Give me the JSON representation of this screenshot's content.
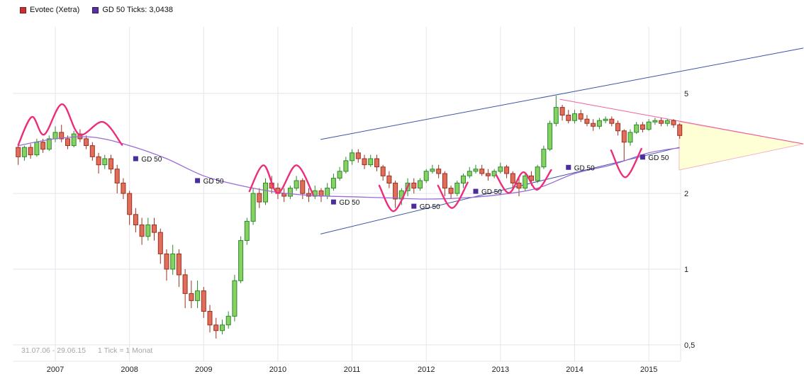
{
  "legend": {
    "items": [
      {
        "label": "Evotec (Xetra)",
        "marker_color": "#cc2f2f"
      },
      {
        "label": "GD 50 Ticks: 3,0438",
        "marker_color": "#5b2ea6"
      }
    ]
  },
  "footer": {
    "range": "31.07.06 - 29.06.15",
    "tick_note": "1 Tick = 1 Monat"
  },
  "colors": {
    "up_fill": "#86d161",
    "up_stroke": "#2c8a2c",
    "down_fill": "#df6e5a",
    "down_stroke": "#9c2f1f",
    "gd50_line": "#9a6bd6",
    "gd50_marker": "#4b2c9e",
    "annotation_pink": "#ee2d7a",
    "trendline_blue": "#3c55a5",
    "triangle_fill": "#ffffd6",
    "triangle_stroke": "#f2b7c6",
    "grid": "#e4e4ec",
    "axis_text": "#222222",
    "note_text": "#a6a6a6"
  },
  "chart_data": {
    "type": "candlestick",
    "title": "Evotec (Xetra)",
    "period": "monthly",
    "start_month": "2006-07",
    "end_month": "2015-06",
    "y_scale": "log",
    "y_ticks": [
      5,
      2,
      1,
      0.5
    ],
    "y_tick_labels": [
      "5",
      "2",
      "1",
      "0,5"
    ],
    "x_tick_labels": [
      "2007",
      "2008",
      "2009",
      "2010",
      "2011",
      "2012",
      "2013",
      "2014",
      "2015"
    ],
    "candles": [
      [
        3.05,
        3.1,
        2.6,
        2.8
      ],
      [
        2.8,
        3.1,
        2.7,
        3.05
      ],
      [
        3.05,
        3.15,
        2.75,
        2.85
      ],
      [
        2.85,
        3.3,
        2.8,
        3.2
      ],
      [
        3.2,
        3.3,
        2.9,
        3.0
      ],
      [
        3.0,
        3.4,
        2.95,
        3.3
      ],
      [
        3.3,
        3.7,
        3.2,
        3.5
      ],
      [
        3.5,
        3.75,
        3.2,
        3.3
      ],
      [
        3.3,
        3.4,
        3.0,
        3.1
      ],
      [
        3.1,
        3.55,
        3.05,
        3.45
      ],
      [
        3.45,
        3.6,
        3.2,
        3.3
      ],
      [
        3.3,
        3.4,
        3.0,
        3.1
      ],
      [
        3.1,
        3.2,
        2.7,
        2.8
      ],
      [
        2.8,
        2.9,
        2.4,
        2.6
      ],
      [
        2.6,
        2.85,
        2.5,
        2.75
      ],
      [
        2.75,
        2.85,
        2.4,
        2.5
      ],
      [
        2.5,
        2.6,
        2.0,
        2.2
      ],
      [
        2.2,
        2.3,
        1.9,
        2.0
      ],
      [
        2.0,
        2.05,
        1.5,
        1.65
      ],
      [
        1.65,
        1.75,
        1.4,
        1.5
      ],
      [
        1.5,
        1.6,
        1.25,
        1.35
      ],
      [
        1.35,
        1.6,
        1.3,
        1.5
      ],
      [
        1.5,
        1.6,
        1.3,
        1.4
      ],
      [
        1.4,
        1.45,
        1.05,
        1.15
      ],
      [
        1.15,
        1.2,
        0.9,
        1.0
      ],
      [
        1.0,
        1.25,
        0.95,
        1.15
      ],
      [
        1.15,
        1.2,
        0.85,
        0.95
      ],
      [
        0.95,
        1.0,
        0.7,
        0.8
      ],
      [
        0.8,
        0.9,
        0.7,
        0.75
      ],
      [
        0.75,
        0.9,
        0.7,
        0.82
      ],
      [
        0.82,
        0.85,
        0.64,
        0.68
      ],
      [
        0.68,
        0.72,
        0.56,
        0.6
      ],
      [
        0.6,
        0.64,
        0.53,
        0.57
      ],
      [
        0.57,
        0.63,
        0.55,
        0.6
      ],
      [
        0.6,
        0.68,
        0.58,
        0.65
      ],
      [
        0.65,
        0.95,
        0.62,
        0.9
      ],
      [
        0.9,
        1.35,
        0.88,
        1.3
      ],
      [
        1.3,
        1.6,
        1.25,
        1.55
      ],
      [
        1.55,
        2.1,
        1.5,
        2.0
      ],
      [
        2.0,
        2.1,
        1.75,
        1.85
      ],
      [
        1.85,
        2.3,
        1.8,
        2.2
      ],
      [
        2.2,
        2.35,
        2.0,
        2.1
      ],
      [
        2.1,
        2.2,
        1.9,
        2.0
      ],
      [
        2.0,
        2.1,
        1.85,
        1.95
      ],
      [
        1.95,
        2.15,
        1.9,
        2.1
      ],
      [
        2.1,
        2.35,
        2.05,
        2.25
      ],
      [
        2.25,
        2.3,
        1.9,
        2.0
      ],
      [
        2.0,
        2.1,
        1.85,
        1.95
      ],
      [
        1.95,
        2.15,
        1.9,
        2.05
      ],
      [
        2.05,
        2.1,
        1.85,
        1.95
      ],
      [
        1.95,
        2.2,
        1.9,
        2.1
      ],
      [
        2.1,
        2.4,
        2.05,
        2.3
      ],
      [
        2.3,
        2.55,
        2.25,
        2.45
      ],
      [
        2.45,
        2.8,
        2.4,
        2.7
      ],
      [
        2.7,
        3.0,
        2.6,
        2.9
      ],
      [
        2.9,
        3.0,
        2.65,
        2.75
      ],
      [
        2.75,
        2.85,
        2.5,
        2.6
      ],
      [
        2.6,
        2.85,
        2.55,
        2.75
      ],
      [
        2.75,
        2.85,
        2.45,
        2.55
      ],
      [
        2.55,
        2.6,
        2.25,
        2.35
      ],
      [
        2.35,
        2.45,
        2.1,
        2.2
      ],
      [
        2.2,
        2.25,
        1.75,
        1.9
      ],
      [
        1.9,
        2.1,
        1.8,
        2.05
      ],
      [
        2.05,
        2.3,
        1.95,
        2.2
      ],
      [
        2.2,
        2.3,
        2.0,
        2.1
      ],
      [
        2.1,
        2.3,
        2.05,
        2.25
      ],
      [
        2.25,
        2.5,
        2.2,
        2.45
      ],
      [
        2.45,
        2.6,
        2.4,
        2.5
      ],
      [
        2.5,
        2.6,
        2.3,
        2.4
      ],
      [
        2.4,
        2.45,
        1.95,
        2.1
      ],
      [
        2.1,
        2.15,
        1.9,
        2.0
      ],
      [
        2.0,
        2.25,
        1.95,
        2.2
      ],
      [
        2.2,
        2.4,
        2.1,
        2.35
      ],
      [
        2.35,
        2.55,
        2.3,
        2.45
      ],
      [
        2.45,
        2.6,
        2.4,
        2.5
      ],
      [
        2.5,
        2.6,
        2.35,
        2.4
      ],
      [
        2.4,
        2.5,
        2.25,
        2.35
      ],
      [
        2.35,
        2.5,
        2.3,
        2.45
      ],
      [
        2.45,
        2.65,
        2.4,
        2.55
      ],
      [
        2.55,
        2.6,
        2.3,
        2.4
      ],
      [
        2.4,
        2.45,
        2.05,
        2.2
      ],
      [
        2.2,
        2.3,
        1.95,
        2.1
      ],
      [
        2.1,
        2.4,
        2.05,
        2.35
      ],
      [
        2.35,
        2.45,
        2.15,
        2.25
      ],
      [
        2.25,
        2.6,
        2.2,
        2.55
      ],
      [
        2.55,
        3.1,
        2.5,
        3.0
      ],
      [
        3.0,
        3.9,
        2.95,
        3.8
      ],
      [
        3.8,
        4.9,
        3.7,
        4.4
      ],
      [
        4.4,
        4.5,
        3.9,
        4.1
      ],
      [
        4.1,
        4.3,
        3.8,
        3.9
      ],
      [
        3.9,
        4.3,
        3.8,
        4.15
      ],
      [
        4.15,
        4.3,
        3.85,
        3.95
      ],
      [
        3.95,
        4.1,
        3.7,
        3.8
      ],
      [
        3.8,
        3.95,
        3.55,
        3.7
      ],
      [
        3.7,
        4.0,
        3.6,
        3.9
      ],
      [
        3.9,
        4.05,
        3.8,
        3.95
      ],
      [
        3.95,
        4.05,
        3.7,
        3.8
      ],
      [
        3.8,
        3.9,
        3.4,
        3.55
      ],
      [
        3.55,
        3.6,
        2.7,
        3.2
      ],
      [
        3.2,
        3.6,
        3.1,
        3.5
      ],
      [
        3.5,
        3.85,
        3.45,
        3.75
      ],
      [
        3.75,
        3.85,
        3.5,
        3.6
      ],
      [
        3.6,
        3.95,
        3.55,
        3.85
      ],
      [
        3.85,
        4.0,
        3.75,
        3.9
      ],
      [
        3.9,
        4.0,
        3.7,
        3.8
      ],
      [
        3.8,
        3.95,
        3.7,
        3.9
      ],
      [
        3.9,
        3.95,
        3.65,
        3.75
      ],
      [
        3.75,
        3.8,
        3.3,
        3.4
      ]
    ],
    "gd50": {
      "label": "GD 50",
      "last_value": 3.0438,
      "points": [
        [
          0,
          3.1
        ],
        [
          6,
          3.3
        ],
        [
          12,
          3.35
        ],
        [
          18,
          3.1
        ],
        [
          24,
          2.75
        ],
        [
          30,
          2.35
        ],
        [
          36,
          2.15
        ],
        [
          42,
          2.02
        ],
        [
          48,
          1.96
        ],
        [
          54,
          1.94
        ],
        [
          60,
          1.92
        ],
        [
          66,
          1.9
        ],
        [
          72,
          1.92
        ],
        [
          78,
          1.98
        ],
        [
          84,
          2.1
        ],
        [
          90,
          2.4
        ],
        [
          96,
          2.6
        ],
        [
          102,
          2.9
        ],
        [
          107,
          3.04
        ]
      ],
      "labels": [
        [
          19,
          2.75
        ],
        [
          29,
          2.25
        ],
        [
          51,
          1.85
        ],
        [
          64,
          1.78
        ],
        [
          74,
          2.04
        ],
        [
          89,
          2.54
        ],
        [
          101,
          2.79
        ]
      ]
    },
    "trendlines": [
      {
        "name": "upper-channel",
        "points": [
          [
            48.9,
            3.28
          ],
          [
            127,
            7.57
          ]
        ]
      },
      {
        "name": "lower-channel",
        "points": [
          [
            48.9,
            1.38
          ],
          [
            106.9,
            3.05
          ]
        ]
      }
    ],
    "peak_line": {
      "name": "descending-peak-line",
      "points": [
        [
          87.6,
          4.74
        ],
        [
          127,
          3.15
        ]
      ]
    },
    "triangle": {
      "name": "convergence-wedge",
      "points": [
        [
          106.9,
          3.86
        ],
        [
          106.9,
          2.48
        ],
        [
          127,
          3.15
        ]
      ]
    },
    "curves": [
      {
        "name": "top-arcs-2006-2007",
        "points": [
          [
            0,
            3.12
          ],
          [
            2.2,
            4.03
          ],
          [
            4.2,
            3.43
          ],
          [
            7.1,
            4.53
          ],
          [
            9.9,
            3.43
          ],
          [
            13.7,
            3.85
          ],
          [
            16.8,
            3.12
          ]
        ]
      },
      {
        "name": "arcs-2009-2010",
        "points": [
          [
            37.4,
            2.04
          ],
          [
            39.7,
            2.59
          ],
          [
            42.0,
            2.01
          ],
          [
            45.0,
            2.59
          ],
          [
            47.7,
            1.98
          ]
        ]
      },
      {
        "name": "cup-2011",
        "points": [
          [
            58.4,
            2.15
          ],
          [
            60.7,
            1.7
          ],
          [
            63.2,
            2.18
          ]
        ]
      },
      {
        "name": "cup-2012",
        "points": [
          [
            67.9,
            2.15
          ],
          [
            70.2,
            1.75
          ],
          [
            72.7,
            2.21
          ]
        ]
      },
      {
        "name": "waves-2013",
        "points": [
          [
            77.3,
            2.37
          ],
          [
            79.4,
            2.01
          ],
          [
            81.7,
            2.43
          ],
          [
            83.9,
            2.07
          ],
          [
            86.2,
            2.48
          ]
        ]
      },
      {
        "name": "cup-2014",
        "points": [
          [
            95.9,
            2.97
          ],
          [
            98.2,
            2.32
          ],
          [
            100.8,
            3.01
          ]
        ]
      }
    ]
  }
}
